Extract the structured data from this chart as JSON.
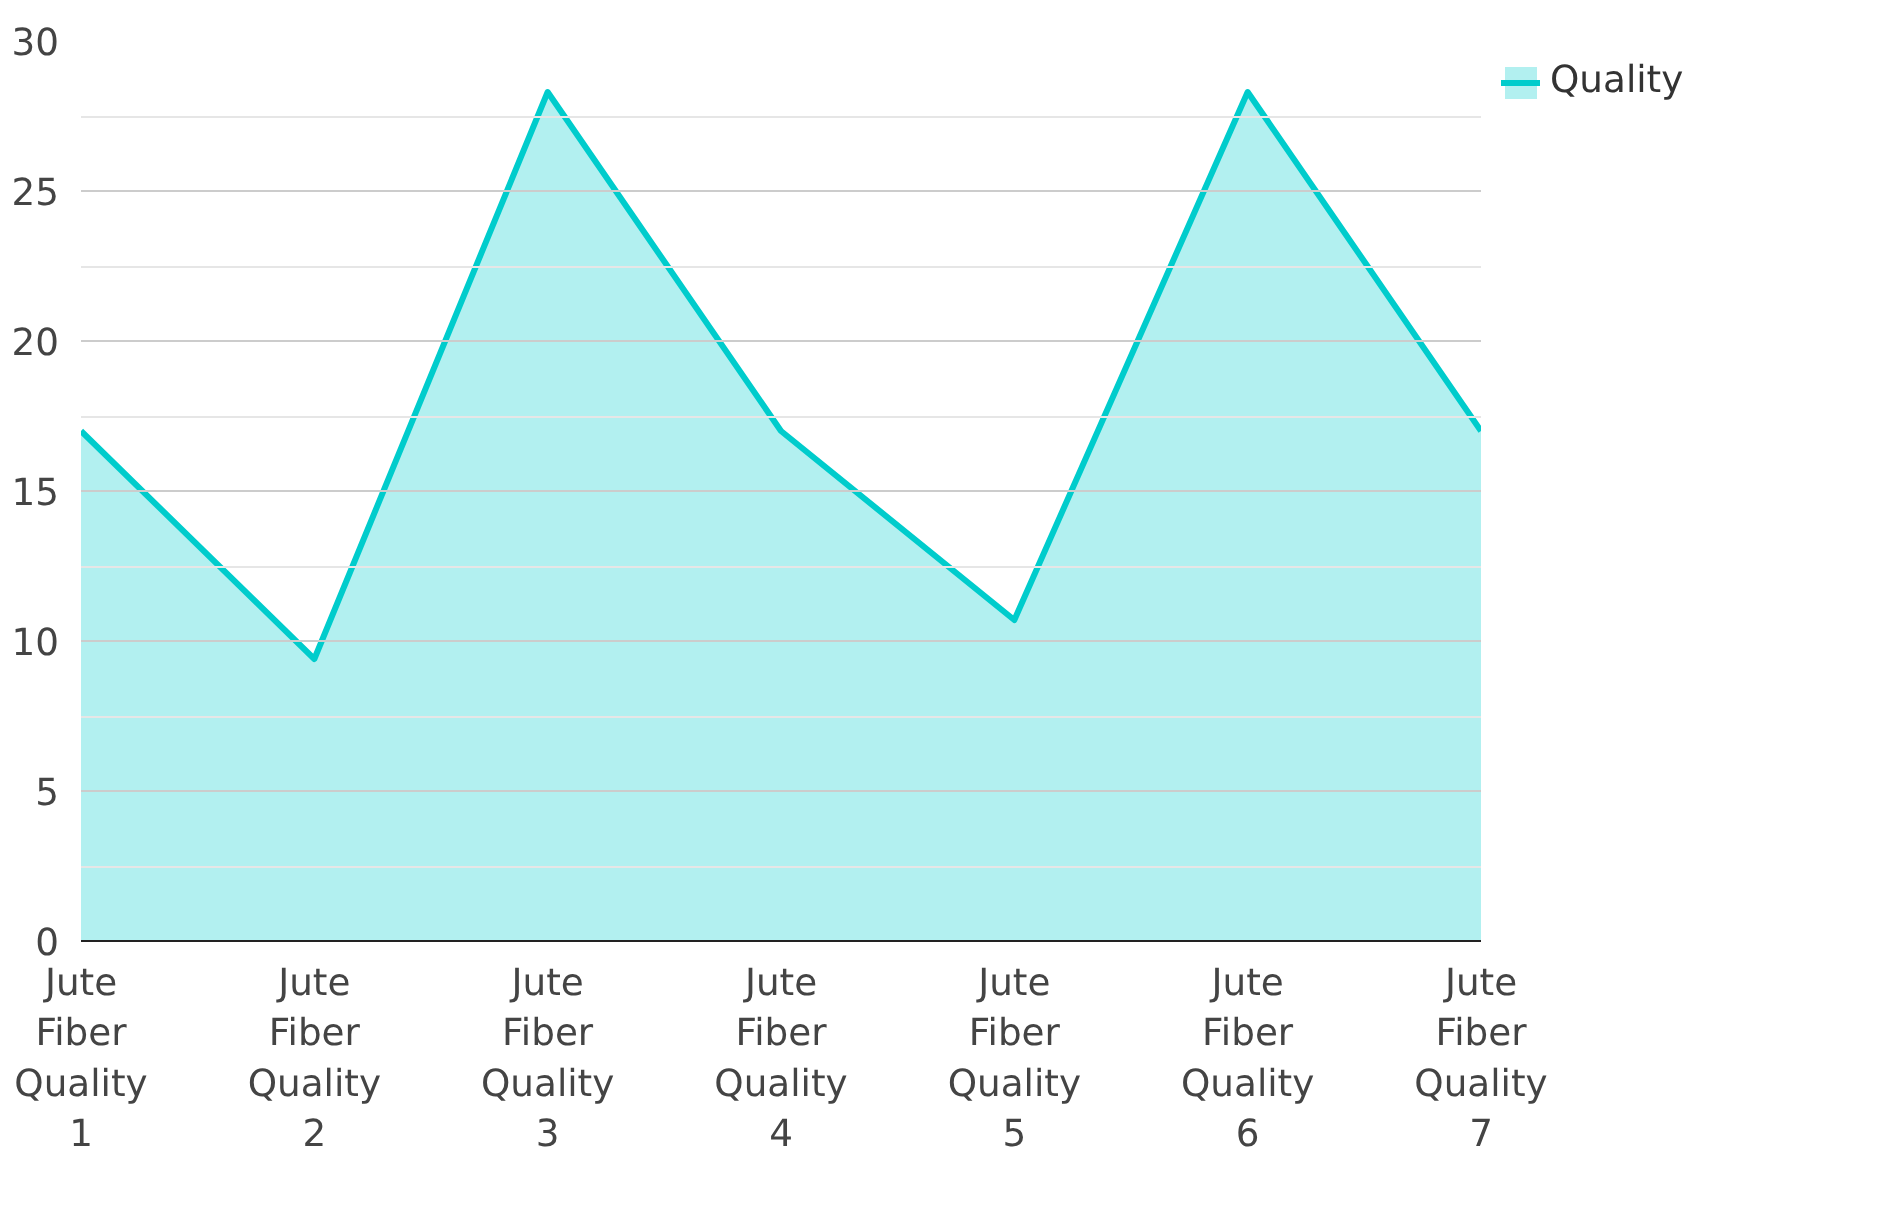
{
  "chart_data": {
    "type": "area",
    "categories": [
      "Jute Fiber Quality 1",
      "Jute Fiber Quality 2",
      "Jute Fiber Quality 3",
      "Jute Fiber Quality 4",
      "Jute Fiber Quality 5",
      "Jute Fiber Quality 6",
      "Jute Fiber Quality 7"
    ],
    "series": [
      {
        "name": "Quality",
        "color": "#00cccc",
        "values": [
          17,
          9.4,
          28.3,
          17,
          10.7,
          28.3,
          17
        ]
      }
    ],
    "ylim": [
      0,
      30
    ],
    "yticks": [
      0,
      {
        "value": 2.5,
        "label": null
      },
      5,
      {
        "value": 7.5,
        "label": null
      },
      10,
      {
        "value": 12.5,
        "label": null
      },
      15,
      {
        "value": 17.5,
        "label": null
      },
      20,
      {
        "value": 22.5,
        "label": null
      },
      25,
      {
        "value": 27.5,
        "label": null
      },
      30
    ],
    "grid": "y",
    "legend": "top right"
  }
}
